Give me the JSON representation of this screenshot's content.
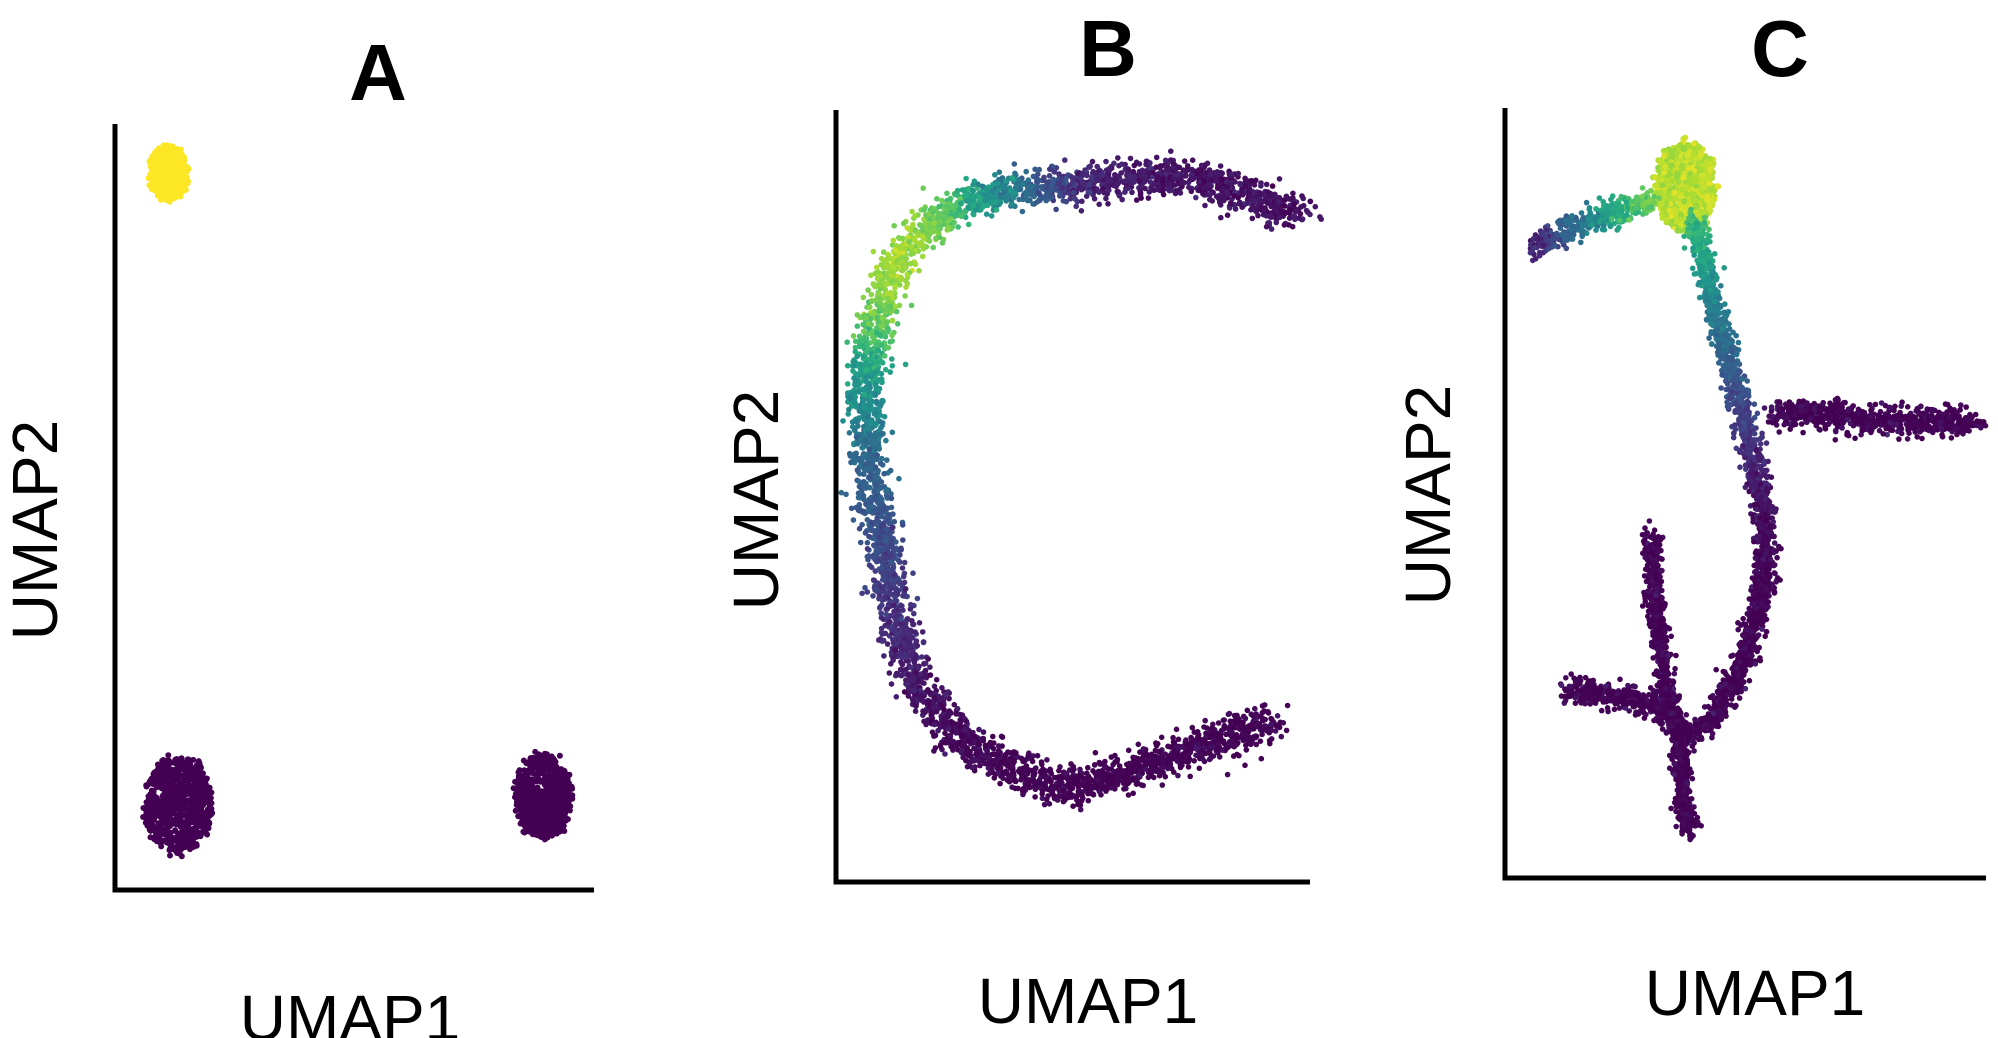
{
  "chart_data": [
    {
      "type": "scatter",
      "panel": "A",
      "xlabel": "UMAP1",
      "ylabel": "UMAP2",
      "axis_ticks": false,
      "grid": false,
      "colormap": "viridis",
      "clusters": [
        {
          "shape": "blob",
          "points": [
            [
              0.1,
              0.93
            ]
          ],
          "value": 1.0
        },
        {
          "shape": "blob",
          "points": [
            [
              0.12,
              0.1
            ]
          ],
          "value": 0.0
        },
        {
          "shape": "blob",
          "points": [
            [
              0.9,
              0.11
            ]
          ],
          "value": 0.0
        }
      ]
    },
    {
      "type": "scatter",
      "panel": "B",
      "xlabel": "UMAP1",
      "ylabel": "UMAP2",
      "axis_ticks": false,
      "grid": false,
      "colormap": "viridis",
      "clusters": [
        {
          "shape": "path",
          "points": [
            [
              0.99,
              0.87
            ],
            [
              0.85,
              0.9
            ],
            [
              0.73,
              0.92
            ],
            [
              0.52,
              0.91
            ],
            [
              0.35,
              0.9
            ],
            [
              0.22,
              0.87
            ],
            [
              0.13,
              0.82
            ],
            [
              0.08,
              0.74
            ],
            [
              0.05,
              0.65
            ],
            [
              0.06,
              0.55
            ],
            [
              0.08,
              0.45
            ],
            [
              0.11,
              0.35
            ],
            [
              0.15,
              0.26
            ],
            [
              0.24,
              0.18
            ],
            [
              0.36,
              0.14
            ],
            [
              0.47,
              0.11
            ],
            [
              0.55,
              0.12
            ],
            [
              0.65,
              0.14
            ],
            [
              0.75,
              0.16
            ],
            [
              0.84,
              0.18
            ],
            [
              0.93,
              0.2
            ]
          ],
          "values": [
            0.05,
            0.05,
            0.05,
            0.1,
            0.45,
            0.75,
            0.88,
            0.8,
            0.55,
            0.35,
            0.25,
            0.15,
            0.08,
            0.02,
            0.0,
            0.0,
            0.0,
            0.0,
            0.0,
            0.0,
            0.0
          ],
          "spread": 0.012
        }
      ]
    },
    {
      "type": "scatter",
      "panel": "C",
      "xlabel": "UMAP1",
      "ylabel": "UMAP2",
      "axis_ticks": false,
      "grid": false,
      "colormap": "viridis",
      "clusters": [
        {
          "shape": "blob",
          "points": [
            [
              0.37,
              0.9
            ]
          ],
          "value": 0.92
        },
        {
          "shape": "path",
          "points": [
            [
              0.05,
              0.82
            ],
            [
              0.12,
              0.84
            ],
            [
              0.2,
              0.86
            ],
            [
              0.3,
              0.88
            ]
          ],
          "values": [
            0.08,
            0.3,
            0.55,
            0.8
          ],
          "spread": 0.008
        },
        {
          "shape": "path",
          "points": [
            [
              0.39,
              0.86
            ],
            [
              0.43,
              0.75
            ],
            [
              0.48,
              0.63
            ],
            [
              0.52,
              0.53
            ],
            [
              0.54,
              0.46
            ],
            [
              0.54,
              0.38
            ],
            [
              0.5,
              0.28
            ],
            [
              0.43,
              0.2
            ],
            [
              0.37,
              0.17
            ]
          ],
          "values": [
            0.7,
            0.45,
            0.25,
            0.1,
            0.03,
            0.0,
            0.0,
            0.0,
            0.0
          ],
          "spread": 0.007
        },
        {
          "shape": "path",
          "points": [
            [
              0.56,
              0.6
            ],
            [
              0.66,
              0.6
            ],
            [
              0.78,
              0.59
            ],
            [
              0.88,
              0.59
            ],
            [
              0.98,
              0.59
            ]
          ],
          "values": [
            0.02,
            0.0,
            0.0,
            0.0,
            0.0
          ],
          "spread": 0.009
        },
        {
          "shape": "path",
          "points": [
            [
              0.3,
              0.44
            ],
            [
              0.31,
              0.34
            ],
            [
              0.33,
              0.24
            ],
            [
              0.36,
              0.16
            ],
            [
              0.37,
              0.08
            ],
            [
              0.38,
              0.05
            ]
          ],
          "values": [
            0.0,
            0.0,
            0.0,
            0.0,
            0.0,
            0.0
          ],
          "spread": 0.006
        },
        {
          "shape": "path",
          "points": [
            [
              0.12,
              0.24
            ],
            [
              0.2,
              0.23
            ],
            [
              0.3,
              0.22
            ],
            [
              0.36,
              0.2
            ]
          ],
          "values": [
            0.0,
            0.0,
            0.0,
            0.0
          ],
          "spread": 0.008
        }
      ]
    }
  ]
}
